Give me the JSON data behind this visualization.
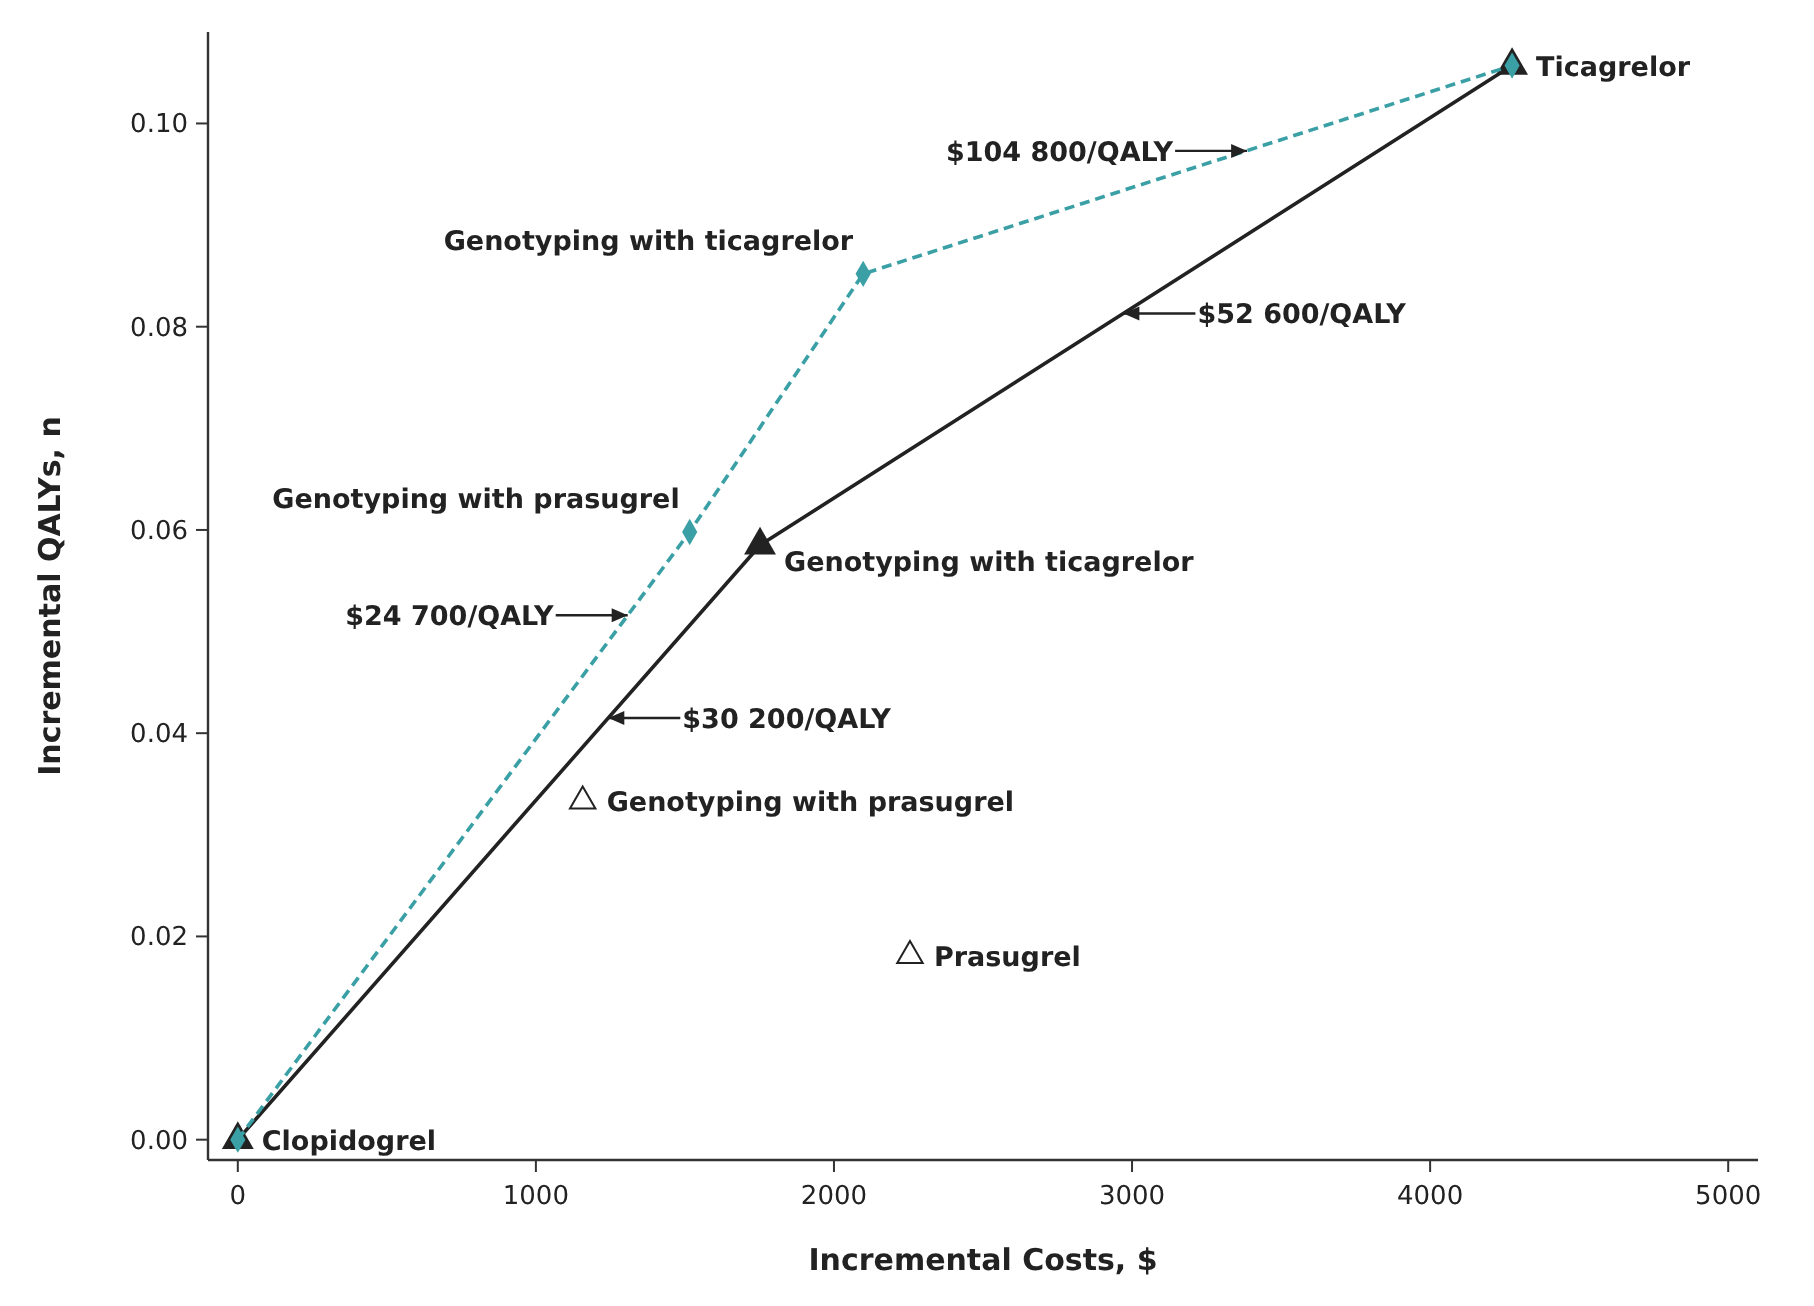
{
  "chart_data": {
    "type": "line",
    "xlabel": "Incremental Costs, $",
    "ylabel": "Incremental QALYs, n",
    "xlim": [
      -100,
      5100
    ],
    "xticks": [
      0,
      1000,
      2000,
      3000,
      4000,
      5000
    ],
    "ylim": [
      -0.002,
      0.109
    ],
    "yticks": [
      {
        "value": 0,
        "label": "0.00"
      },
      {
        "value": 0.02,
        "label": "0.02"
      },
      {
        "value": 0.04,
        "label": "0.04"
      },
      {
        "value": 0.06,
        "label": "0.06"
      },
      {
        "value": 0.08,
        "label": "0.08"
      },
      {
        "value": 0.1,
        "label": "0.10"
      }
    ],
    "grid": false,
    "series": [
      {
        "color": "#3aa0a5",
        "line_style": "dashed",
        "marker": "diamond",
        "x": [
          0,
          1516,
          2098,
          4275
        ],
        "values": [
          0,
          0.0598,
          0.0852,
          0.1057
        ]
      },
      {
        "color": "#222222",
        "line_style": "solid",
        "marker": "triangle",
        "x": [
          0,
          1752,
          4275
        ],
        "values": [
          0,
          0.0585,
          0.1057
        ]
      },
      {
        "type": "scatter",
        "color": "#222222",
        "marker": "triangle",
        "x": [
          1157,
          2255
        ],
        "values": [
          0.0333,
          0.0181
        ]
      }
    ],
    "annotations": [
      {
        "text": "Clopidogrel",
        "x": 0,
        "y": 0
      },
      {
        "text": "Ticagrelor",
        "x": 4275,
        "y": 0.1057
      },
      {
        "text": "Genotyping with ticagrelor",
        "x": 2098,
        "y": 0.0852
      },
      {
        "text": "Genotyping with prasugrel",
        "x": 1516,
        "y": 0.0598
      },
      {
        "text": "Genotyping with ticagrelor",
        "x": 1752,
        "y": 0.0585
      },
      {
        "text": "Genotyping with prasugrel",
        "x": 1157,
        "y": 0.0333
      },
      {
        "text": "Prasugrel",
        "x": 2255,
        "y": 0.0181
      },
      {
        "text": "$104 800/QALY",
        "x": 3386,
        "y": 0.0973
      },
      {
        "text": "$52 600/QALY",
        "x": 2971,
        "y": 0.0813
      },
      {
        "text": "$24 700/QALY",
        "x": 1308,
        "y": 0.0516
      },
      {
        "text": "$30 200/QALY",
        "x": 1243,
        "y": 0.0415
      }
    ]
  }
}
